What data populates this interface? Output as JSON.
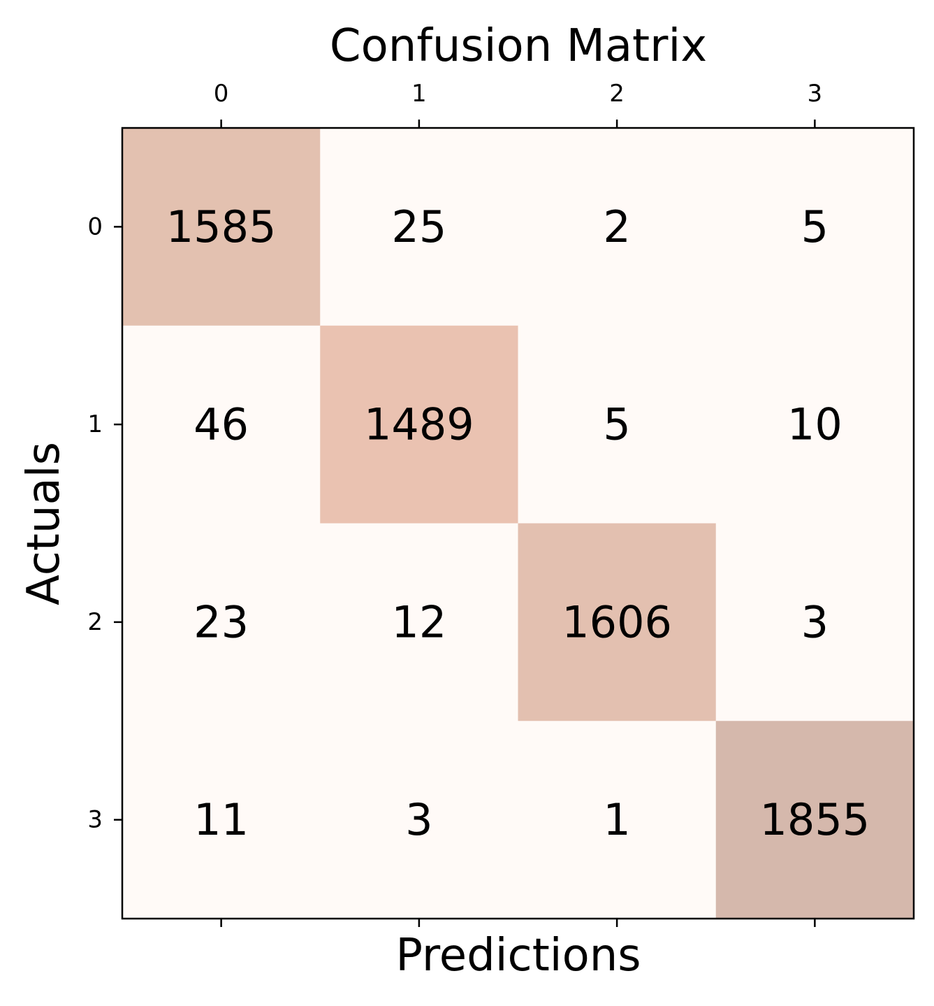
{
  "chart_data": {
    "type": "heatmap",
    "title": "Confusion Matrix",
    "xlabel": "Predictions",
    "ylabel": "Actuals",
    "x_categories": [
      "0",
      "1",
      "2",
      "3"
    ],
    "y_categories": [
      "0",
      "1",
      "2",
      "3"
    ],
    "values": [
      [
        1585,
        25,
        2,
        5
      ],
      [
        46,
        1489,
        5,
        10
      ],
      [
        23,
        12,
        1606,
        3
      ],
      [
        11,
        3,
        1,
        1855
      ]
    ],
    "x_axis_position": "top",
    "grid": false,
    "legend": "none",
    "colors": {
      "low": "#fff5ee",
      "high": "#d5b8ac",
      "diagonal_cells": [
        "#e3c1b0",
        "#eac2b1",
        "#e3c0b0",
        "#d5b8ac"
      ],
      "off_diagonal": "#fffaf7",
      "text": "#000000",
      "frame": "#000000"
    }
  }
}
